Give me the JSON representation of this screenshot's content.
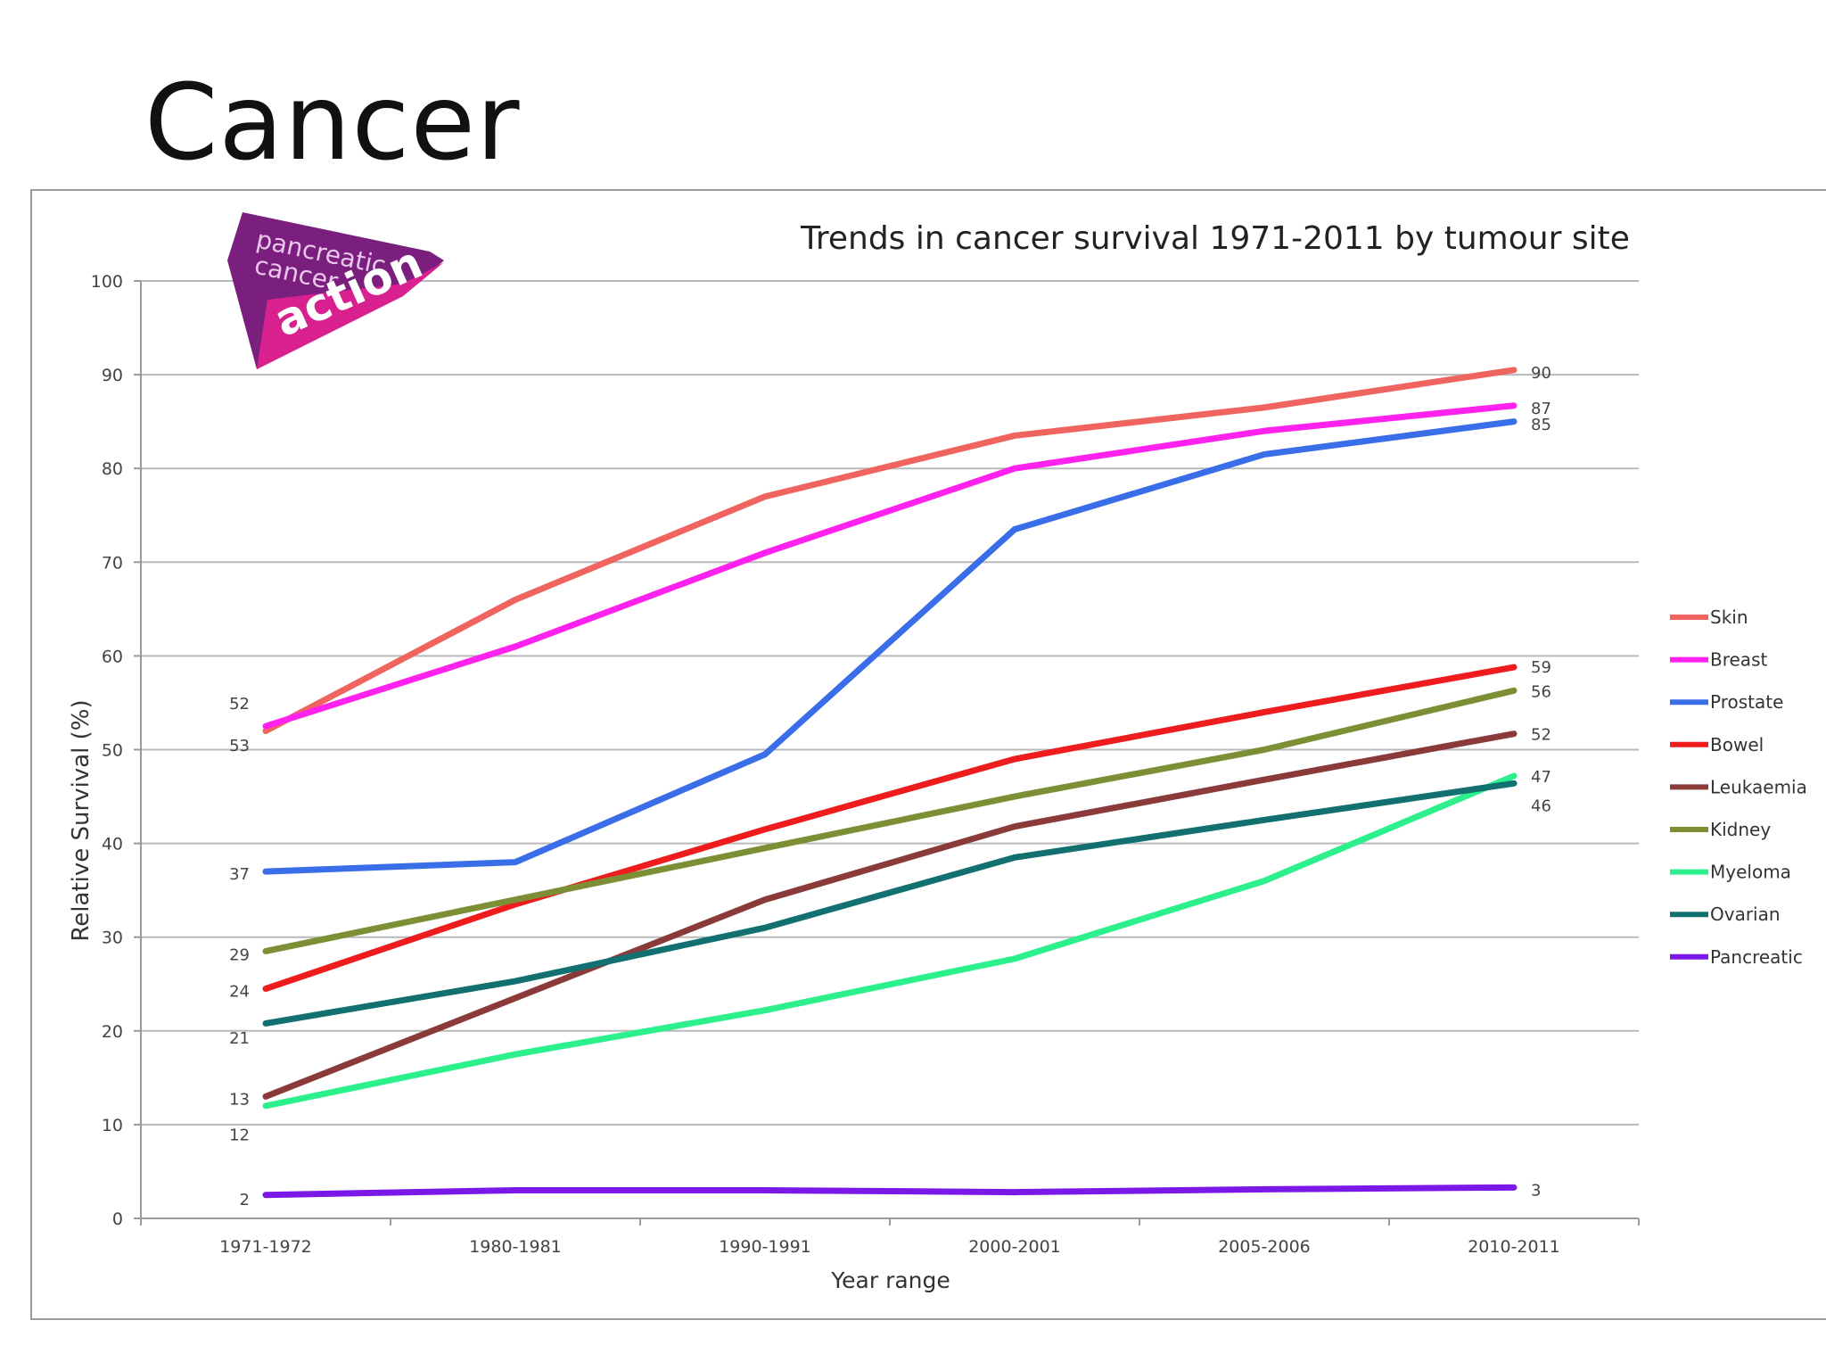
{
  "slide": {
    "title": "Cancer"
  },
  "logo": {
    "line1": "pancreatic",
    "line2": "cancer",
    "line3": "action",
    "colors": {
      "dark": "#7a1f7e",
      "light": "#d8208f"
    }
  },
  "chart_data": {
    "type": "line",
    "title": "Trends in cancer survival 1971-2011 by tumour site",
    "xlabel": "Year range",
    "ylabel": "Relative Survival (%)",
    "ylim": [
      0,
      100
    ],
    "yticks": [
      "0",
      "10",
      "20",
      "30",
      "40",
      "50",
      "60",
      "70",
      "80",
      "90",
      "100"
    ],
    "categories": [
      "1971-1972",
      "1980-1981",
      "1990-1991",
      "2000-2001",
      "2005-2006",
      "2010-2011"
    ],
    "grid": true,
    "legend_position": "right",
    "series": [
      {
        "name": "Skin",
        "color": "#f0645f",
        "values": [
          52,
          66,
          77,
          83.5,
          86.5,
          90.5
        ]
      },
      {
        "name": "Breast",
        "color": "#ff22ee",
        "values": [
          52.5,
          61,
          71,
          80,
          84,
          86.7
        ]
      },
      {
        "name": "Prostate",
        "color": "#3a6de8",
        "values": [
          37,
          38,
          49.5,
          73.5,
          81.5,
          85
        ]
      },
      {
        "name": "Bowel",
        "color": "#ee1c1c",
        "values": [
          24.5,
          33.5,
          41.5,
          49,
          54,
          58.8
        ]
      },
      {
        "name": "Leukaemia",
        "color": "#8b3a3a",
        "values": [
          13,
          23.5,
          34,
          41.8,
          46.8,
          51.7
        ]
      },
      {
        "name": "Kidney",
        "color": "#7d8f35",
        "values": [
          28.5,
          34,
          39.5,
          45,
          50,
          56.3
        ]
      },
      {
        "name": "Myeloma",
        "color": "#2bf08c",
        "values": [
          12,
          17.5,
          22.2,
          27.7,
          36,
          47.2
        ]
      },
      {
        "name": "Ovarian",
        "color": "#127070",
        "values": [
          20.8,
          25.3,
          31,
          38.5,
          42.5,
          46.4
        ]
      },
      {
        "name": "Pancreatic",
        "color": "#7a18e8",
        "values": [
          2.5,
          3,
          3,
          2.8,
          3.1,
          3.3
        ]
      }
    ],
    "start_labels": [
      {
        "text": "52",
        "at": 55
      },
      {
        "text": "53",
        "at": 50.5
      },
      {
        "text": "37",
        "at": 36.8
      },
      {
        "text": "29",
        "at": 28.2
      },
      {
        "text": "24",
        "at": 24.3
      },
      {
        "text": "21",
        "at": 19.3
      },
      {
        "text": "13",
        "at": 12.8
      },
      {
        "text": "12",
        "at": 9
      },
      {
        "text": "2",
        "at": 2.1
      }
    ],
    "end_labels": [
      {
        "text": "90",
        "at": 90.3
      },
      {
        "text": "87",
        "at": 86.5
      },
      {
        "text": "85",
        "at": 84.8
      },
      {
        "text": "59",
        "at": 58.9
      },
      {
        "text": "56",
        "at": 56.3
      },
      {
        "text": "52",
        "at": 51.7
      },
      {
        "text": "47",
        "at": 47.2
      },
      {
        "text": "46",
        "at": 44.1
      },
      {
        "text": "3",
        "at": 3.1
      }
    ]
  }
}
